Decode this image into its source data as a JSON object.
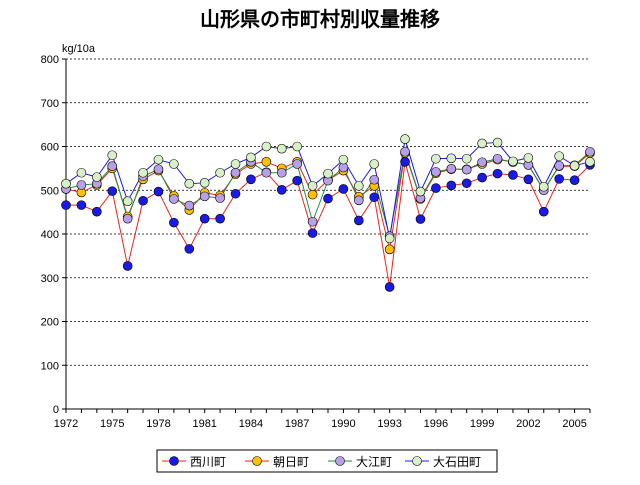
{
  "chart_data": {
    "type": "line",
    "title": "山形県の市町村別収量推移",
    "ylabel": "kg/10a",
    "ylim": [
      0,
      800
    ],
    "yticks": [
      0,
      100,
      200,
      300,
      400,
      500,
      600,
      700,
      800
    ],
    "x_tick_labels": [
      "1972",
      "1975",
      "1978",
      "1981",
      "1984",
      "1987",
      "1990",
      "1993",
      "1996",
      "1999",
      "2002",
      "2005"
    ],
    "x": [
      1972,
      1973,
      1974,
      1975,
      1976,
      1977,
      1978,
      1979,
      1980,
      1981,
      1982,
      1983,
      1984,
      1985,
      1986,
      1987,
      1988,
      1989,
      1990,
      1991,
      1992,
      1993,
      1994,
      1995,
      1996,
      1997,
      1998,
      1999,
      2000,
      2001,
      2002,
      2003,
      2004,
      2005,
      2006
    ],
    "xlim": [
      1972,
      2006
    ],
    "grid": true,
    "legend_position": "bottom",
    "series": [
      {
        "name": "西川町",
        "line_color": "#e8261e",
        "marker_color": "#1a1ae6",
        "values": [
          466,
          466,
          451,
          498,
          327,
          476,
          497,
          426,
          366,
          435,
          435,
          492,
          525,
          541,
          501,
          522,
          402,
          481,
          503,
          431,
          484,
          279,
          565,
          434,
          505,
          511,
          516,
          529,
          538,
          535,
          525,
          451,
          526,
          523,
          558
        ]
      },
      {
        "name": "朝日町",
        "line_color": "#e8261e",
        "marker_color": "#ffc000",
        "values": [
          503,
          495,
          512,
          550,
          440,
          525,
          545,
          487,
          455,
          494,
          488,
          537,
          560,
          565,
          550,
          565,
          490,
          523,
          545,
          485,
          510,
          365,
          585,
          480,
          539,
          548,
          548,
          560,
          570,
          565,
          558,
          500,
          555,
          555,
          585
        ]
      },
      {
        "name": "大江町",
        "line_color": "#1f8f3a",
        "marker_color": "#b8a0e8",
        "values": [
          503,
          512,
          515,
          555,
          435,
          532,
          548,
          480,
          465,
          486,
          482,
          540,
          565,
          540,
          540,
          560,
          428,
          522,
          552,
          477,
          524,
          395,
          588,
          482,
          542,
          549,
          547,
          564,
          572,
          564,
          558,
          500,
          556,
          557,
          588
        ]
      },
      {
        "name": "大石田町",
        "line_color": "#1a1ae6",
        "marker_color": "#d8f0c8",
        "values": [
          515,
          540,
          530,
          580,
          475,
          540,
          570,
          560,
          515,
          517,
          540,
          560,
          575,
          600,
          595,
          600,
          510,
          538,
          570,
          510,
          560,
          390,
          617,
          497,
          572,
          573,
          572,
          607,
          609,
          566,
          574,
          508,
          578,
          556,
          565
        ]
      }
    ]
  }
}
